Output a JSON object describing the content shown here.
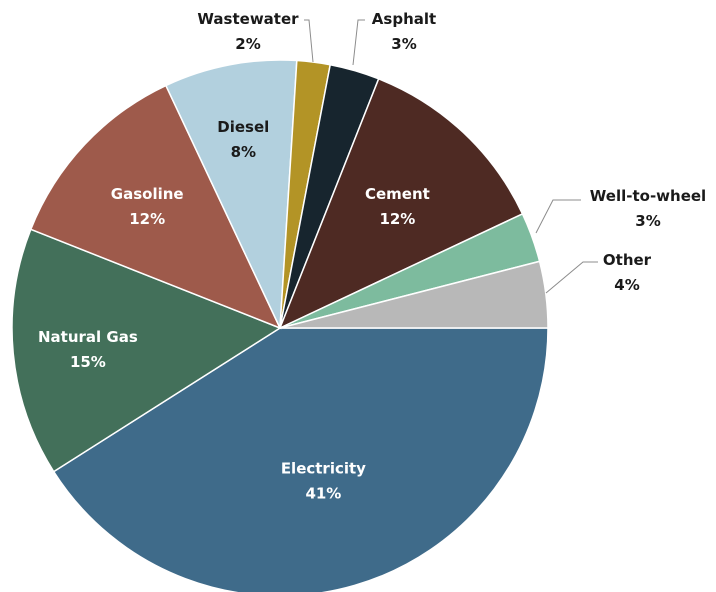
{
  "chart_data": {
    "type": "pie",
    "title": "",
    "start_angle_deg": 0,
    "direction": "clockwise",
    "slices": [
      {
        "label": "Electricity",
        "value": 41,
        "percent_label": "41%",
        "color": "#3f6b8a",
        "label_style": "inside-light"
      },
      {
        "label": "Natural Gas",
        "value": 15,
        "percent_label": "15%",
        "color": "#43705a",
        "label_style": "inside-light"
      },
      {
        "label": "Gasoline",
        "value": 12,
        "percent_label": "12%",
        "color": "#9e5a4b",
        "label_style": "inside-light"
      },
      {
        "label": "Diesel",
        "value": 8,
        "percent_label": "8%",
        "color": "#b2d0de",
        "label_style": "inside-dark"
      },
      {
        "label": "Wastewater",
        "value": 2,
        "percent_label": "2%",
        "color": "#b39426",
        "label_style": "outside"
      },
      {
        "label": "Asphalt",
        "value": 3,
        "percent_label": "3%",
        "color": "#17252e",
        "label_style": "outside"
      },
      {
        "label": "Cement",
        "value": 12,
        "percent_label": "12%",
        "color": "#4e2a23",
        "label_style": "inside-light"
      },
      {
        "label": "Well-to-wheel",
        "value": 3,
        "percent_label": "3%",
        "color": "#7dbb9e",
        "label_style": "outside"
      },
      {
        "label": "Other",
        "value": 4,
        "percent_label": "4%",
        "color": "#b8b8b8",
        "label_style": "outside"
      }
    ]
  }
}
